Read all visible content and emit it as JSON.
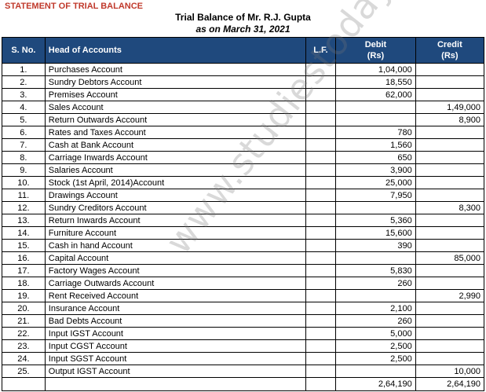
{
  "heading": "STATEMENT OF TRIAL BALANCE",
  "title_line1": "Trial Balance of Mr. R.J. Gupta",
  "title_line2": "as on March 31, 2021",
  "watermark": "www.studiestoday.com",
  "columns": {
    "sno": "S. No.",
    "head": "Head of Accounts",
    "lf": "L.F.",
    "debit": "Debit",
    "debit_unit": "(Rs)",
    "credit": "Credit",
    "credit_unit": "(Rs)"
  },
  "rows": [
    {
      "sno": "1.",
      "head": "Purchases Account",
      "lf": "",
      "debit": "1,04,000",
      "credit": ""
    },
    {
      "sno": "2.",
      "head": "Sundry Debtors Account",
      "lf": "",
      "debit": "18,550",
      "credit": ""
    },
    {
      "sno": "3.",
      "head": "Premises Account",
      "lf": "",
      "debit": "62,000",
      "credit": ""
    },
    {
      "sno": "4.",
      "head": "Sales Account",
      "lf": "",
      "debit": "",
      "credit": "1,49,000"
    },
    {
      "sno": "5.",
      "head": "Return Outwards Account",
      "lf": "",
      "debit": "",
      "credit": "8,900"
    },
    {
      "sno": "6.",
      "head": "Rates and Taxes Account",
      "lf": "",
      "debit": "780",
      "credit": ""
    },
    {
      "sno": "7.",
      "head": "Cash at Bank Account",
      "lf": "",
      "debit": "1,560",
      "credit": ""
    },
    {
      "sno": "8.",
      "head": "Carriage Inwards Account",
      "lf": "",
      "debit": "650",
      "credit": ""
    },
    {
      "sno": "9.",
      "head": "Salaries Account",
      "lf": "",
      "debit": "3,900",
      "credit": ""
    },
    {
      "sno": "10.",
      "head": "Stock (1st April, 2014)Account",
      "lf": "",
      "debit": "25,000",
      "credit": ""
    },
    {
      "sno": "11.",
      "head": "Drawings Account",
      "lf": "",
      "debit": "7,950",
      "credit": ""
    },
    {
      "sno": "12.",
      "head": "Sundry Creditors Account",
      "lf": "",
      "debit": "",
      "credit": "8,300"
    },
    {
      "sno": "13.",
      "head": "Return Inwards Account",
      "lf": "",
      "debit": "5,360",
      "credit": ""
    },
    {
      "sno": "14.",
      "head": "Furniture Account",
      "lf": "",
      "debit": "15,600",
      "credit": ""
    },
    {
      "sno": "15.",
      "head": "Cash in hand Account",
      "lf": "",
      "debit": "390",
      "credit": ""
    },
    {
      "sno": "16.",
      "head": "Capital Account",
      "lf": "",
      "debit": "",
      "credit": "85,000"
    },
    {
      "sno": "17.",
      "head": "Factory Wages Account",
      "lf": "",
      "debit": "5,830",
      "credit": ""
    },
    {
      "sno": "18.",
      "head": "Carriage Outwards Account",
      "lf": "",
      "debit": "260",
      "credit": ""
    },
    {
      "sno": "19.",
      "head": "Rent Received Account",
      "lf": "",
      "debit": "",
      "credit": "2,990"
    },
    {
      "sno": "20.",
      "head": "Insurance Account",
      "lf": "",
      "debit": "2,100",
      "credit": ""
    },
    {
      "sno": "21.",
      "head": "Bad Debts Account",
      "lf": "",
      "debit": "260",
      "credit": ""
    },
    {
      "sno": "22.",
      "head": "Input IGST Account",
      "lf": "",
      "debit": "5,000",
      "credit": ""
    },
    {
      "sno": "23.",
      "head": "Input CGST Account",
      "lf": "",
      "debit": "2,500",
      "credit": ""
    },
    {
      "sno": "24.",
      "head": "Input SGST Account",
      "lf": "",
      "debit": "2,500",
      "credit": ""
    },
    {
      "sno": "25.",
      "head": "Output IGST Account",
      "lf": "",
      "debit": "",
      "credit": "10,000"
    }
  ],
  "totals": {
    "debit": "2,64,190",
    "credit": "2,64,190"
  },
  "colors": {
    "header_bg": "#1f497d",
    "header_text": "#ffffff",
    "heading_text": "#c0392b"
  }
}
